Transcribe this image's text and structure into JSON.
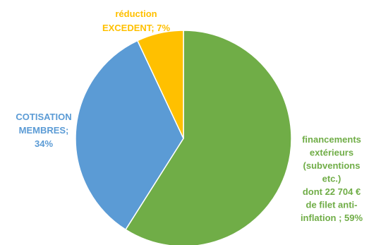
{
  "chart_data": {
    "type": "pie",
    "start_angle_deg": 0,
    "direction": "clockwise",
    "slices": [
      {
        "label_lines": [
          "financements",
          "extérieurs",
          "(subventions",
          "etc.)",
          "dont 22 704 €",
          "de filet anti-",
          "inflation ; 59%"
        ],
        "value": 59,
        "color": "#70AD47"
      },
      {
        "label_lines": [
          "COTISATION",
          "MEMBRES;",
          "34%"
        ],
        "value": 34,
        "color": "#5B9BD5"
      },
      {
        "label_lines": [
          "réduction",
          "EXCEDENT; 7%"
        ],
        "value": 7,
        "color": "#FFC000"
      }
    ],
    "legend": "none"
  }
}
